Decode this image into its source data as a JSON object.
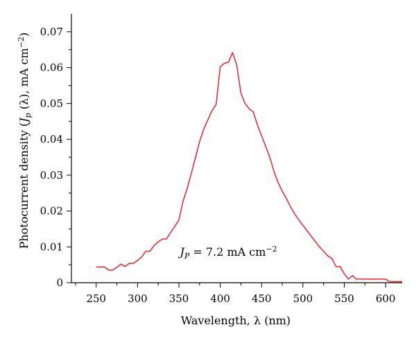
{
  "chart_data": {
    "type": "line",
    "title": "",
    "xlabel": "Wavelength, λ (nm)",
    "ylabel_parts": [
      "Photocurrent density (",
      "J",
      "p",
      " (λ), mA cm",
      "−2",
      ")"
    ],
    "xlim": [
      220,
      620
    ],
    "ylim": [
      0,
      0.075
    ],
    "x_ticks": [
      250,
      300,
      350,
      400,
      450,
      500,
      550,
      600
    ],
    "x_tick_labels": [
      "250",
      "300",
      "350",
      "400",
      "450",
      "500",
      "550",
      "600"
    ],
    "y_ticks": [
      0,
      0.01,
      0.02,
      0.03,
      0.04,
      0.05,
      0.06,
      0.07
    ],
    "y_tick_labels": [
      "0",
      "0.01",
      "0.02",
      "0.03",
      "0.04",
      "0.05",
      "0.06",
      "0.07"
    ],
    "grid": false,
    "line_color": "#e8242a",
    "annotation": {
      "parts": [
        "J",
        "P",
        " = 7.2 mA cm",
        "−2"
      ],
      "x": 410,
      "y": 0.0075
    },
    "series": [
      {
        "x": [
          250,
          260,
          265,
          270,
          275,
          280,
          285,
          290,
          295,
          300,
          305,
          310,
          315,
          320,
          325,
          330,
          335,
          340,
          345,
          350,
          355,
          360,
          365,
          370,
          375,
          380,
          385,
          390,
          395,
          400,
          405,
          410,
          415,
          420,
          425,
          430,
          435,
          440,
          445,
          450,
          455,
          460,
          465,
          470,
          475,
          480,
          485,
          490,
          495,
          500,
          505,
          510,
          515,
          520,
          525,
          530,
          535,
          540,
          545,
          550,
          555,
          560,
          565,
          570,
          575,
          580,
          585,
          590,
          595,
          600,
          605,
          620
        ],
        "y": [
          0.0044,
          0.0044,
          0.0035,
          0.0035,
          0.0043,
          0.0052,
          0.0045,
          0.0054,
          0.0054,
          0.0062,
          0.0072,
          0.0088,
          0.0088,
          0.0104,
          0.0114,
          0.0122,
          0.0122,
          0.014,
          0.0157,
          0.0175,
          0.0227,
          0.0262,
          0.0305,
          0.0349,
          0.0393,
          0.0428,
          0.0454,
          0.048,
          0.0497,
          0.0602,
          0.0612,
          0.0615,
          0.0642,
          0.0607,
          0.0528,
          0.05,
          0.0485,
          0.0476,
          0.044,
          0.041,
          0.038,
          0.035,
          0.031,
          0.028,
          0.0255,
          0.0235,
          0.0212,
          0.0192,
          0.0175,
          0.016,
          0.0145,
          0.013,
          0.0115,
          0.01,
          0.0088,
          0.0075,
          0.0068,
          0.0045,
          0.0045,
          0.0025,
          0.001,
          0.002,
          0.001,
          0.001,
          0.001,
          0.001,
          0.001,
          0.001,
          0.001,
          0.001,
          0.0003,
          0.0003
        ]
      }
    ]
  }
}
